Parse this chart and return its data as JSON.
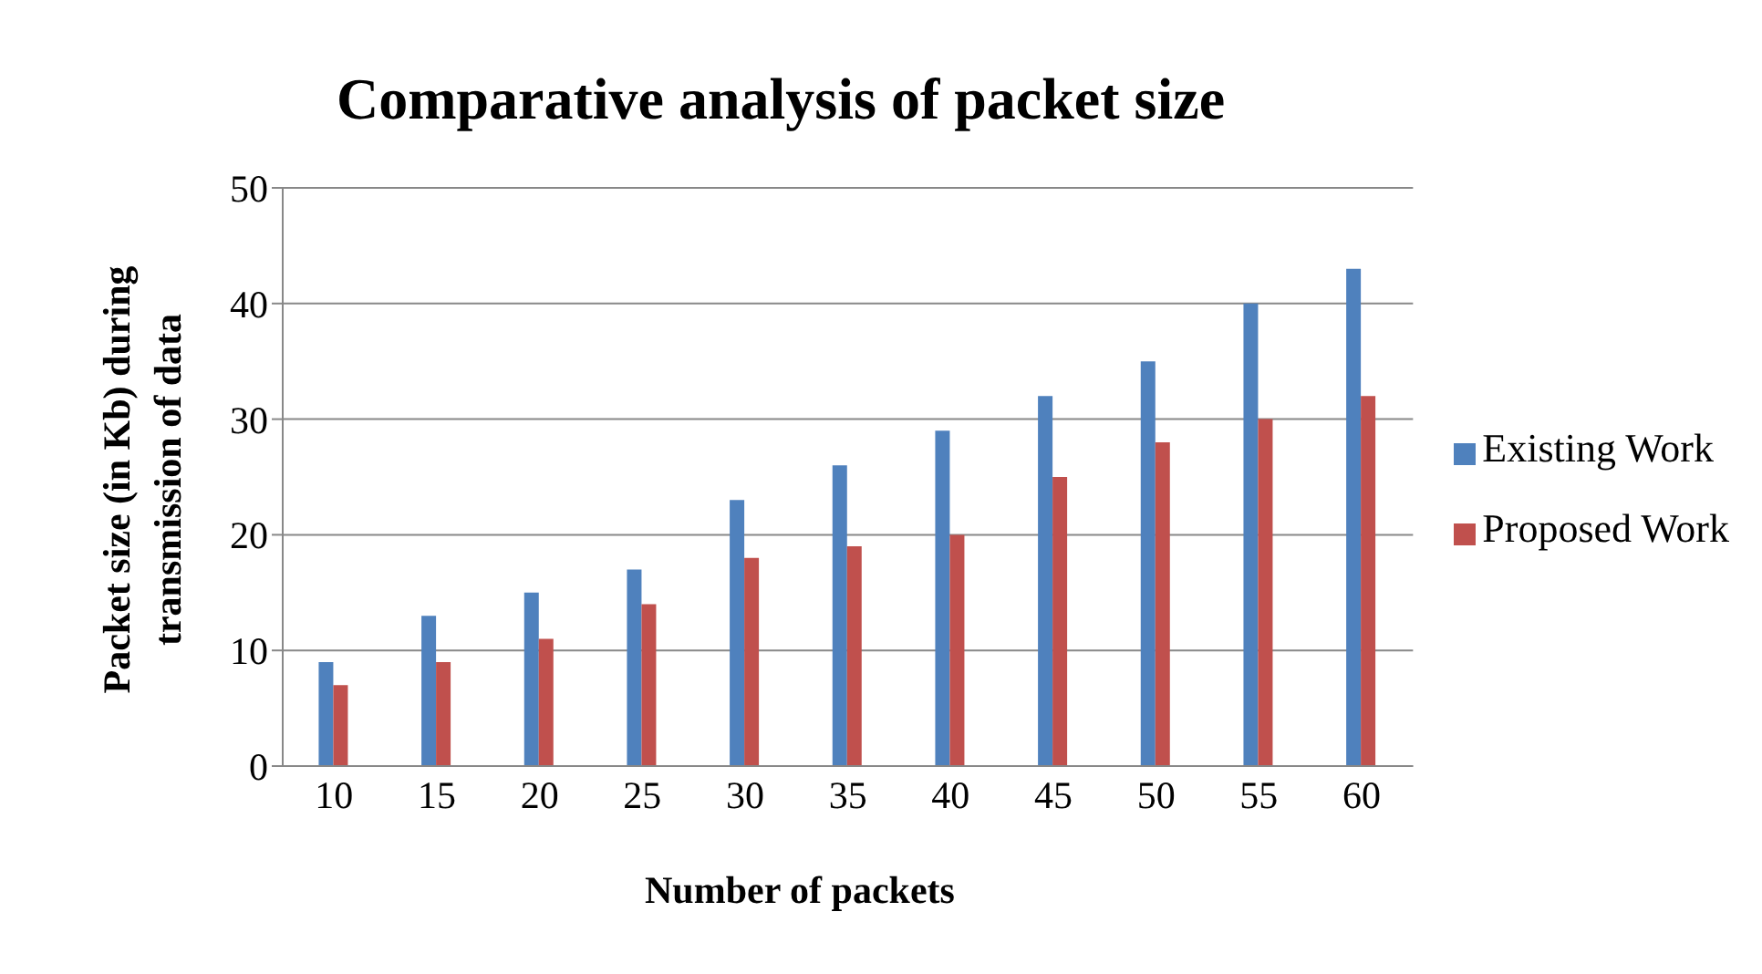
{
  "chart_data": {
    "type": "bar",
    "title": "Comparative analysis of packet size",
    "xlabel": "Number of packets",
    "ylabel": "Packet size (in Kb) during transmission of data",
    "categories": [
      "10",
      "15",
      "20",
      "25",
      "30",
      "35",
      "40",
      "45",
      "50",
      "55",
      "60"
    ],
    "series": [
      {
        "name": "Existing Work",
        "color": "#4f81bd",
        "values": [
          9,
          13,
          15,
          17,
          23,
          26,
          29,
          32,
          35,
          40,
          43
        ]
      },
      {
        "name": "Proposed Work",
        "color": "#c0504d",
        "values": [
          7,
          9,
          11,
          14,
          18,
          19,
          20,
          25,
          28,
          30,
          32
        ]
      }
    ],
    "ylim": [
      0,
      50
    ],
    "yticks": [
      0,
      10,
      20,
      30,
      40,
      50
    ],
    "grid": "y",
    "legend": "right"
  }
}
